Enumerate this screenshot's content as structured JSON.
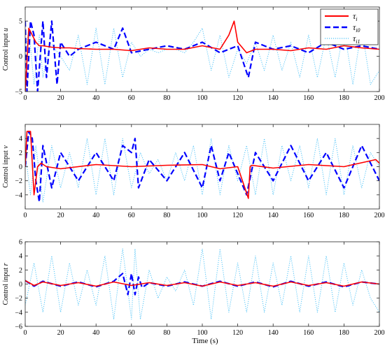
{
  "figure": {
    "xlabel": "Time (s)"
  },
  "chart_data": [
    {
      "type": "line",
      "ylabel": "Control input u",
      "xlim": [
        0,
        200
      ],
      "ylim": [
        -5,
        7
      ],
      "xticks": [
        0,
        20,
        40,
        60,
        80,
        100,
        120,
        140,
        160,
        180,
        200
      ],
      "yticks": [
        -5,
        0,
        5
      ],
      "legend": {
        "placement": "top-right",
        "entries": [
          "τi",
          "τi0",
          "τi1"
        ]
      },
      "series": [
        {
          "name": "τi",
          "color": "#ff0000",
          "style": "solid",
          "x": [
            0,
            2,
            4,
            6,
            8,
            10,
            15,
            20,
            25,
            30,
            40,
            50,
            60,
            70,
            80,
            90,
            100,
            110,
            115,
            118,
            120,
            125,
            130,
            140,
            150,
            160,
            170,
            180,
            190,
            200
          ],
          "y": [
            -5,
            4,
            3,
            2,
            1.5,
            1.5,
            1.3,
            1.2,
            1.2,
            1.1,
            1,
            1,
            0.8,
            1.2,
            1,
            1,
            1.5,
            1,
            3,
            5,
            2,
            0.5,
            1,
            1,
            0.8,
            1.2,
            1,
            1.5,
            1.2,
            1
          ]
        },
        {
          "name": "τi0",
          "color": "#0000ff",
          "style": "dashed",
          "x": [
            0,
            1,
            3,
            5,
            7,
            10,
            12,
            15,
            18,
            20,
            25,
            30,
            40,
            50,
            55,
            60,
            70,
            80,
            90,
            100,
            110,
            120,
            126,
            130,
            140,
            150,
            160,
            170,
            180,
            190,
            200
          ],
          "y": [
            5,
            -5,
            5,
            3,
            -5,
            5,
            -3,
            5,
            -4,
            2,
            0,
            1,
            2,
            1,
            4,
            0.5,
            1,
            1.5,
            1,
            2,
            0.5,
            1.5,
            -3,
            2,
            1,
            1.5,
            0.5,
            2,
            1,
            1.5,
            1
          ]
        },
        {
          "name": "τi1",
          "color": "#4fc3f7",
          "style": "dotted",
          "x": [
            0,
            2,
            5,
            8,
            10,
            14,
            20,
            25,
            30,
            35,
            40,
            45,
            50,
            55,
            60,
            65,
            70,
            75,
            80,
            85,
            90,
            95,
            100,
            105,
            110,
            115,
            120,
            125,
            130,
            135,
            140,
            145,
            150,
            155,
            160,
            165,
            170,
            175,
            180,
            185,
            190,
            195,
            200
          ],
          "y": [
            0,
            4,
            -4,
            3,
            -3,
            2,
            0,
            -2,
            3,
            -4,
            4,
            -4,
            4,
            -3,
            2,
            0,
            1,
            0.5,
            1,
            1,
            0.5,
            2,
            4,
            -2,
            3,
            -3,
            1,
            -1,
            2,
            -2,
            3,
            -2,
            2,
            -3,
            3,
            -3,
            3,
            -3,
            4,
            -4,
            4,
            -4,
            -2
          ]
        }
      ]
    },
    {
      "type": "line",
      "ylabel": "Control input v",
      "xlim": [
        0,
        200
      ],
      "ylim": [
        -6,
        6
      ],
      "xticks": [
        0,
        20,
        40,
        60,
        80,
        100,
        120,
        140,
        160,
        180,
        200
      ],
      "yticks": [
        -4,
        -2,
        0,
        2,
        4
      ],
      "series": [
        {
          "name": "τi",
          "color": "#ff0000",
          "style": "solid",
          "x": [
            0,
            1,
            3,
            5,
            7,
            9,
            12,
            20,
            40,
            60,
            80,
            100,
            110,
            120,
            126,
            127,
            128,
            140,
            160,
            180,
            198,
            200
          ],
          "y": [
            0,
            5,
            5,
            -4,
            0,
            0.5,
            0,
            -0.3,
            0.3,
            0,
            0.2,
            0.3,
            -0.3,
            0,
            -4.5,
            0,
            0.2,
            -0.2,
            0.3,
            0,
            1,
            0.5
          ]
        },
        {
          "name": "τi0",
          "color": "#0000ff",
          "style": "dashed",
          "x": [
            0,
            2,
            4,
            6,
            8,
            10,
            15,
            20,
            30,
            40,
            50,
            55,
            60,
            62,
            64,
            70,
            80,
            90,
            100,
            105,
            110,
            115,
            120,
            125,
            130,
            140,
            150,
            160,
            170,
            180,
            190,
            200
          ],
          "y": [
            0,
            5,
            4,
            -2,
            -5,
            3,
            -3,
            2,
            -2,
            2,
            -2,
            3,
            2,
            4,
            -3,
            1,
            -2,
            2,
            -3,
            3,
            -2,
            2,
            -1,
            -4,
            2,
            -2,
            3,
            -2,
            2,
            -3,
            3,
            -2
          ]
        },
        {
          "name": "τi1",
          "color": "#4fc3f7",
          "style": "dotted",
          "x": [
            0,
            3,
            6,
            10,
            15,
            20,
            25,
            30,
            35,
            40,
            45,
            50,
            55,
            60,
            65,
            70,
            75,
            80,
            85,
            90,
            95,
            100,
            105,
            110,
            115,
            120,
            125,
            130,
            135,
            140,
            145,
            150,
            155,
            160,
            165,
            170,
            175,
            180,
            185,
            190,
            195,
            200
          ],
          "y": [
            2,
            -4,
            3,
            -5,
            3,
            -3,
            2,
            -3,
            4,
            -4,
            4,
            -4,
            4,
            -3,
            2,
            -1,
            1,
            -2,
            2,
            -2,
            3,
            -4,
            4,
            -4,
            3,
            -2,
            3,
            -4,
            4,
            -4,
            3,
            -2,
            3,
            -3,
            4,
            -4,
            4,
            -4,
            3,
            -3,
            2,
            0
          ]
        }
      ]
    },
    {
      "type": "line",
      "ylabel": "Control input r",
      "xlim": [
        0,
        200
      ],
      "ylim": [
        -6,
        6
      ],
      "xticks": [
        0,
        20,
        40,
        60,
        80,
        100,
        120,
        140,
        160,
        180,
        200
      ],
      "yticks": [
        -6,
        -4,
        -2,
        0,
        2,
        4,
        6
      ],
      "series": [
        {
          "name": "τi",
          "color": "#ff0000",
          "style": "solid",
          "x": [
            0,
            5,
            10,
            20,
            30,
            40,
            50,
            60,
            70,
            80,
            90,
            100,
            110,
            120,
            130,
            140,
            150,
            160,
            170,
            180,
            190,
            200
          ],
          "y": [
            0.5,
            -0.2,
            0.3,
            -0.2,
            0.2,
            -0.3,
            0.3,
            -0.2,
            0.2,
            -0.2,
            0.2,
            -0.3,
            0.3,
            -0.2,
            0.2,
            -0.3,
            0.3,
            -0.2,
            0.2,
            -0.3,
            0.3,
            0
          ]
        },
        {
          "name": "τi0",
          "color": "#0000ff",
          "style": "dashed",
          "x": [
            0,
            5,
            10,
            20,
            30,
            40,
            50,
            55,
            58,
            60,
            62,
            64,
            66,
            70,
            80,
            90,
            100,
            110,
            120,
            130,
            140,
            150,
            160,
            170,
            180,
            190,
            200
          ],
          "y": [
            0.5,
            -0.3,
            0.4,
            -0.3,
            0.3,
            -0.4,
            0.4,
            1.5,
            -1.5,
            1.5,
            -1.5,
            1,
            -0.5,
            0.2,
            -0.3,
            0.3,
            -0.3,
            0.4,
            -0.3,
            0.3,
            -0.4,
            0.4,
            -0.3,
            0.3,
            -0.4,
            0.3,
            0
          ]
        },
        {
          "name": "τi1",
          "color": "#4fc3f7",
          "style": "dotted",
          "x": [
            0,
            5,
            10,
            15,
            20,
            25,
            30,
            35,
            40,
            45,
            50,
            55,
            60,
            62,
            65,
            70,
            75,
            80,
            85,
            90,
            95,
            100,
            105,
            110,
            115,
            120,
            125,
            130,
            135,
            140,
            145,
            150,
            155,
            160,
            165,
            170,
            175,
            180,
            185,
            190,
            195,
            200
          ],
          "y": [
            -3,
            3,
            -4,
            4,
            -4,
            3,
            -3,
            2,
            -3,
            4,
            -5,
            5,
            -5,
            5,
            -5,
            2,
            -2,
            1,
            -1,
            2,
            -3,
            5,
            -5,
            5,
            -4,
            3,
            -4,
            4,
            -4,
            3,
            -3,
            4,
            -4,
            4,
            -4,
            4,
            -4,
            3,
            -3,
            2,
            -2,
            -4
          ]
        }
      ]
    }
  ]
}
